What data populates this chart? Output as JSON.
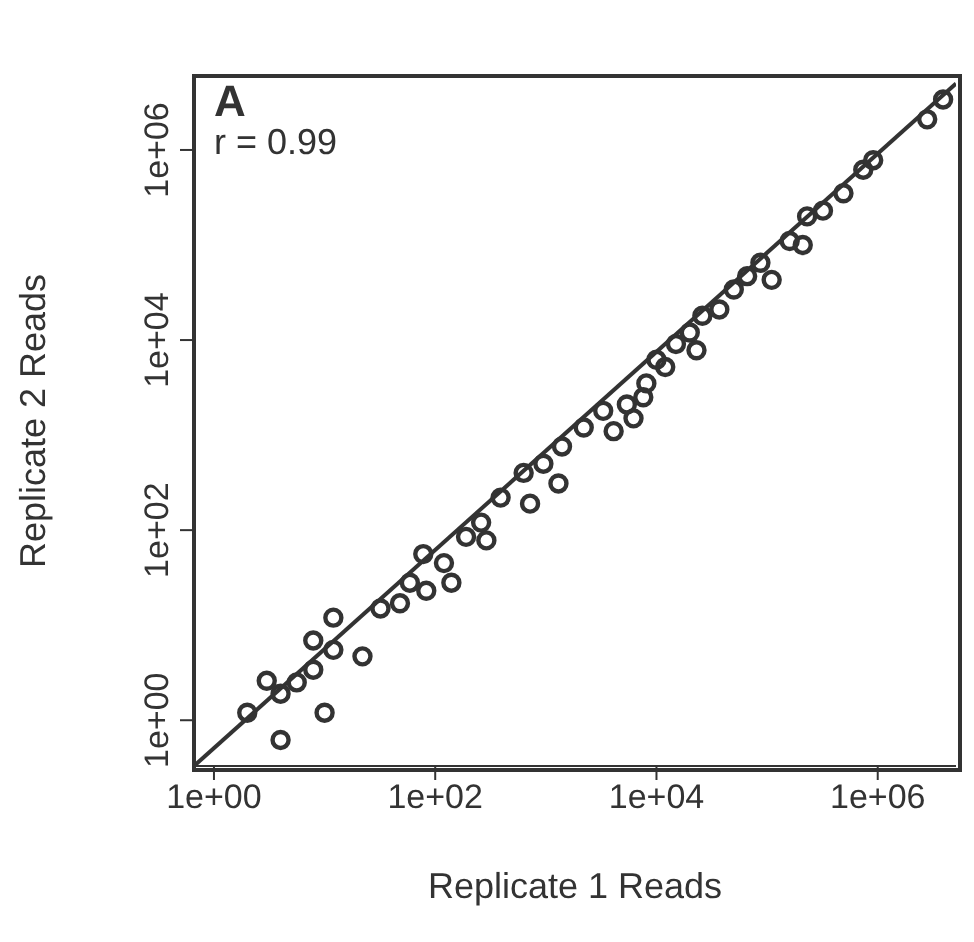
{
  "chart_data": {
    "type": "scatter",
    "xlabel": "Replicate 1 Reads",
    "ylabel": "Replicate 2 Reads",
    "annotations": [
      "A",
      "r = 0.99"
    ],
    "log": "xy",
    "marker": "circle",
    "xlim": [
      0.66,
      5100000
    ],
    "ylim": [
      0.33,
      6000000
    ],
    "xticks": [
      {
        "value": 1,
        "label": "1e+00"
      },
      {
        "value": 100,
        "label": "1e+02"
      },
      {
        "value": 10000,
        "label": "1e+04"
      },
      {
        "value": 1000000,
        "label": "1e+06"
      }
    ],
    "yticks": [
      {
        "value": 1,
        "label": "1e+00"
      },
      {
        "value": 100,
        "label": "1e+02"
      },
      {
        "value": 10000,
        "label": "1e+04"
      },
      {
        "value": 1000000,
        "label": "1e+06"
      }
    ],
    "series": [
      {
        "color": "#333333",
        "x": [
          2.0,
          4.0,
          3.0,
          4.0,
          5.6,
          7.9,
          7.9,
          12,
          12,
          10,
          22,
          32,
          48,
          59,
          78,
          83,
          120,
          140,
          190,
          290,
          260,
          390,
          720,
          630,
          950,
          1400,
          2200,
          1300,
          3300,
          4100,
          5400,
          6200,
          7600,
          8100,
          10000,
          12000,
          15000,
          20000,
          23000,
          26000,
          37000,
          50000,
          66000,
          87000,
          110000,
          160000,
          210000,
          230000,
          320000,
          490000,
          740000,
          910000,
          2800000,
          3900000
        ],
        "values": [
          1.2,
          0.62,
          2.6,
          1.9,
          2.5,
          3.4,
          6.9,
          12,
          5.5,
          1.2,
          4.7,
          15,
          17,
          28,
          56,
          23,
          45,
          28,
          85,
          78,
          120,
          220,
          190,
          400,
          500,
          760,
          1200,
          310,
          1800,
          1100,
          2100,
          1500,
          2500,
          3500,
          6200,
          5200,
          9100,
          12000,
          7800,
          18000,
          21000,
          34000,
          47000,
          65000,
          43000,
          110000,
          100000,
          200000,
          230000,
          350000,
          620000,
          780000,
          2100000,
          3400000
        ]
      },
      {
        "type": "line",
        "marker": "none",
        "color": "#333333",
        "x": [
          0.66,
          5100000
        ],
        "values": [
          0.33,
          5000000
        ]
      }
    ]
  }
}
